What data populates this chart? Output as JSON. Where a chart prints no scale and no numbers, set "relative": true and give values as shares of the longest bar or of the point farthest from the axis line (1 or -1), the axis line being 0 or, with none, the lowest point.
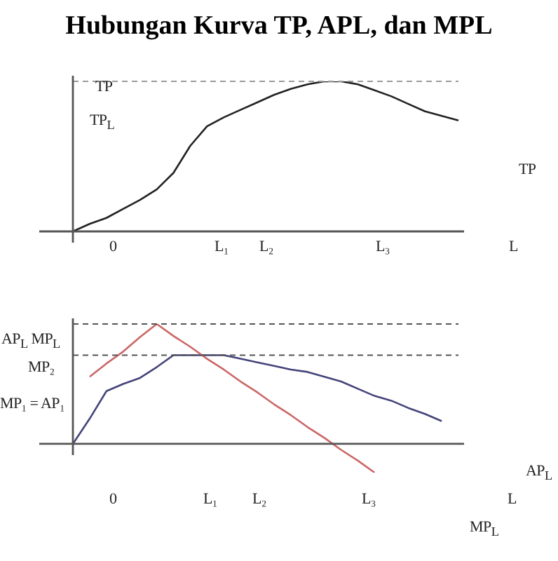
{
  "chart_data": [
    {
      "type": "line",
      "title": "Hubungan Kurva TP, APL, dan MPL",
      "relative": true,
      "legend": false,
      "marker": "none",
      "line_style": "solid",
      "categories": [
        null,
        null,
        null,
        null,
        null,
        null,
        null,
        null,
        null,
        null,
        null,
        null,
        null,
        null,
        null,
        null,
        null,
        null,
        null,
        null,
        null,
        null,
        null,
        null
      ],
      "series": [
        {
          "name": "TP",
          "color": "#222222",
          "values": [
            0,
            0.05,
            0.09,
            0.15,
            0.21,
            0.28,
            0.39,
            0.57,
            0.7,
            0.76,
            0.81,
            0.86,
            0.91,
            0.95,
            0.98,
            1.0,
            1.0,
            0.98,
            0.94,
            0.9,
            0.85,
            0.8,
            0.77,
            0.74
          ]
        }
      ],
      "ref_lines": [
        {
          "axis": "y",
          "value": 1.0,
          "line_style": "dashed",
          "color": "#999999"
        }
      ],
      "annotations": [
        "TP",
        "TP$_{L}$",
        "0",
        "L₁",
        "L₂",
        "L₃",
        "L"
      ]
    },
    {
      "type": "line",
      "relative": true,
      "legend": false,
      "marker": "none",
      "line_style": "solid",
      "categories": [
        null,
        null,
        null,
        null,
        null,
        null,
        null,
        null,
        null,
        null,
        null,
        null,
        null,
        null,
        null,
        null,
        null,
        null,
        null,
        null,
        null,
        null,
        null,
        null
      ],
      "series": [
        {
          "name": "MP$_{L}$",
          "color": "#cc6666",
          "values": [
            null,
            0.56,
            0.67,
            0.77,
            0.89,
            1.0,
            0.9,
            0.81,
            0.71,
            0.62,
            0.52,
            0.43,
            0.33,
            0.24,
            0.14,
            0.05,
            -0.05,
            -0.14,
            -0.24,
            null,
            null,
            null,
            null,
            null
          ]
        },
        {
          "name": "AP$_{L}$",
          "color": "#44447a",
          "values": [
            0,
            0.21,
            0.44,
            0.5,
            0.55,
            0.64,
            0.74,
            0.74,
            0.74,
            0.74,
            0.71,
            0.68,
            0.65,
            0.62,
            0.6,
            0.56,
            0.52,
            0.46,
            0.4,
            0.36,
            0.3,
            0.25,
            0.19,
            null
          ]
        }
      ],
      "ref_lines": [
        {
          "axis": "y",
          "value": 1.0,
          "line_style": "dashed",
          "color": "#555555"
        },
        {
          "axis": "y",
          "value": 0.74,
          "line_style": "dashed",
          "color": "#555555"
        }
      ],
      "annotations": [
        "AP$_{L}$ MP$_{L}$",
        "MP₂",
        "MP₁ = AP₁",
        "0",
        "L₁",
        "L₂",
        "L₃",
        "L"
      ]
    }
  ]
}
